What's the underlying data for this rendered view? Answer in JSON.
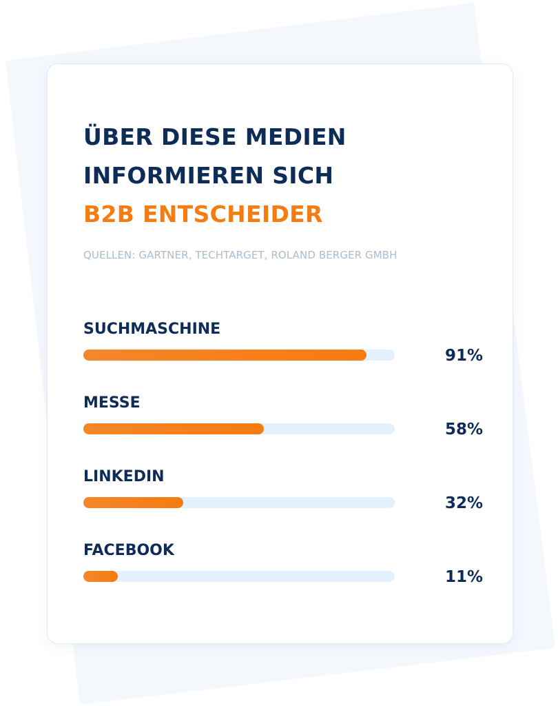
{
  "chart_data": {
    "type": "bar",
    "orientation": "horizontal",
    "title_lines": [
      "ÜBER DIESE MEDIEN",
      "INFORMIEREN SICH"
    ],
    "title_accent": "B2B ENTSCHEIDER",
    "subtitle": "QUELLEN: GARTNER, TECHTARGET, ROLAND BERGER GMBH",
    "categories": [
      "SUCHMASCHINE",
      "MESSE",
      "LINKEDIN",
      "FACEBOOK"
    ],
    "values": [
      91,
      58,
      32,
      11
    ],
    "value_labels": [
      "91%",
      "58%",
      "32%",
      "11%"
    ],
    "xlim": [
      0,
      100
    ],
    "colors": {
      "bar": "#f57c10",
      "track": "#e4f0fb",
      "text": "#0d2c57",
      "accent": "#f57c10",
      "subtitle": "#a9bcd0",
      "backdrop": "#f4f8fd"
    }
  }
}
